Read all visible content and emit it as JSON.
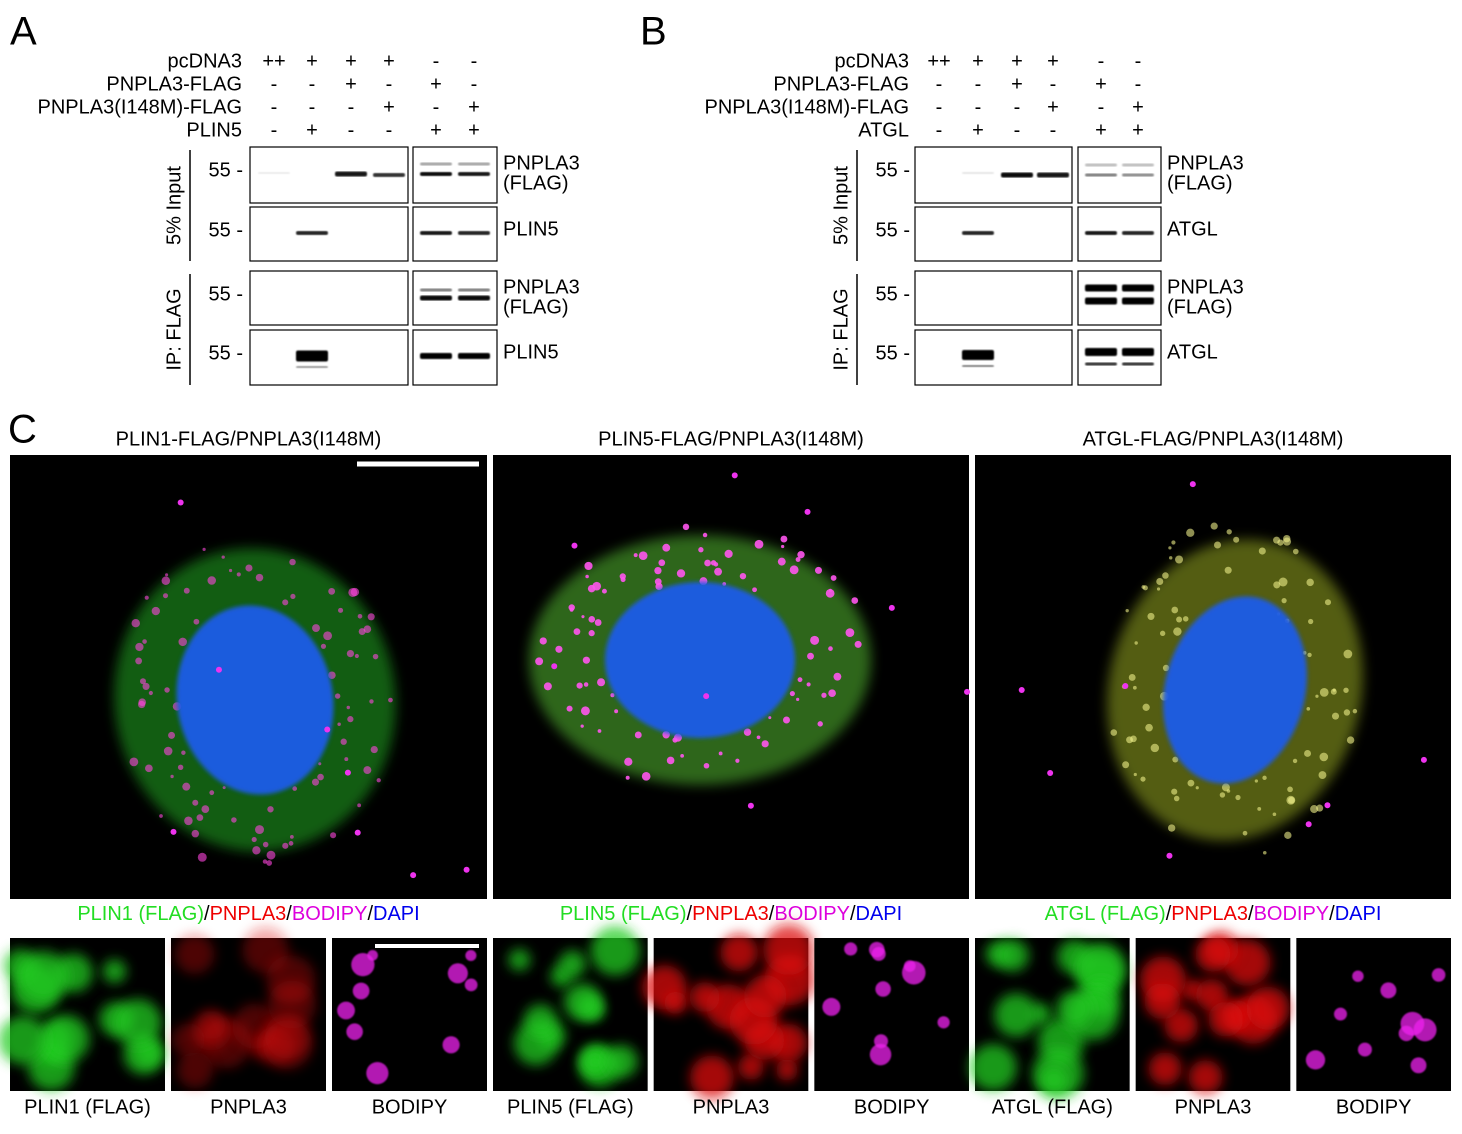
{
  "panel_a": {
    "letter": "A",
    "conditions": [
      {
        "label": "pcDNA3",
        "signs": [
          "++",
          "+",
          "+",
          "+",
          "-",
          "-"
        ]
      },
      {
        "label": "PNPLA3-FLAG",
        "signs": [
          "-",
          "-",
          "+",
          "-",
          "+",
          "-"
        ]
      },
      {
        "label": "PNPLA3(I148M)-FLAG",
        "signs": [
          "-",
          "-",
          "-",
          "+",
          "-",
          "+"
        ]
      },
      {
        "label": "PLIN5",
        "signs": [
          "-",
          "+",
          "-",
          "-",
          "+",
          "+"
        ]
      }
    ],
    "groups": [
      {
        "label": "5% Input",
        "blots": [
          {
            "mw": "55 -",
            "label": [
              "PNPLA3",
              "(FLAG)"
            ]
          },
          {
            "mw": "55 -",
            "label": [
              "PLIN5"
            ]
          }
        ]
      },
      {
        "label": "IP: FLAG",
        "blots": [
          {
            "mw": "55 -",
            "label": [
              "PNPLA3",
              "(FLAG)"
            ]
          },
          {
            "mw": "55 -",
            "label": [
              "PLIN5"
            ]
          }
        ]
      }
    ]
  },
  "panel_b": {
    "letter": "B",
    "conditions": [
      {
        "label": "pcDNA3",
        "signs": [
          "++",
          "+",
          "+",
          "+",
          "-",
          "-"
        ]
      },
      {
        "label": "PNPLA3-FLAG",
        "signs": [
          "-",
          "-",
          "+",
          "-",
          "+",
          "-"
        ]
      },
      {
        "label": "PNPLA3(I148M)-FLAG",
        "signs": [
          "-",
          "-",
          "-",
          "+",
          "-",
          "+"
        ]
      },
      {
        "label": "ATGL",
        "signs": [
          "-",
          "+",
          "-",
          "-",
          "+",
          "+"
        ]
      }
    ],
    "groups": [
      {
        "label": "5% Input",
        "blots": [
          {
            "mw": "55 -",
            "label": [
              "PNPLA3",
              "(FLAG)"
            ]
          },
          {
            "mw": "55 -",
            "label": [
              "ATGL"
            ]
          }
        ]
      },
      {
        "label": "IP: FLAG",
        "blots": [
          {
            "mw": "55 -",
            "label": [
              "PNPLA3",
              "(FLAG)"
            ]
          },
          {
            "mw": "55 -",
            "label": [
              "ATGL"
            ]
          }
        ]
      }
    ]
  },
  "panel_c": {
    "letter": "C",
    "columns": [
      {
        "title": "PLIN1-FLAG/PNPLA3(I148M)",
        "legend": [
          "PLIN1 (FLAG)",
          "/",
          "PNPLA3",
          "/",
          "BODIPY",
          "/",
          "DAPI"
        ],
        "channels": [
          "PLIN1 (FLAG)",
          "PNPLA3",
          "BODIPY"
        ]
      },
      {
        "title": "PLIN5-FLAG/PNPLA3(I148M)",
        "legend": [
          "PLIN5 (FLAG)",
          "/",
          "PNPLA3",
          "/",
          "BODIPY",
          "/",
          "DAPI"
        ],
        "channels": [
          "PLIN5 (FLAG)",
          "PNPLA3",
          "BODIPY"
        ]
      },
      {
        "title": "ATGL-FLAG/PNPLA3(I148M)",
        "legend": [
          "ATGL (FLAG)",
          "/",
          "PNPLA3",
          "/",
          "BODIPY",
          "/",
          "DAPI"
        ],
        "channels": [
          "ATGL (FLAG)",
          "PNPLA3",
          "BODIPY"
        ]
      }
    ]
  }
}
